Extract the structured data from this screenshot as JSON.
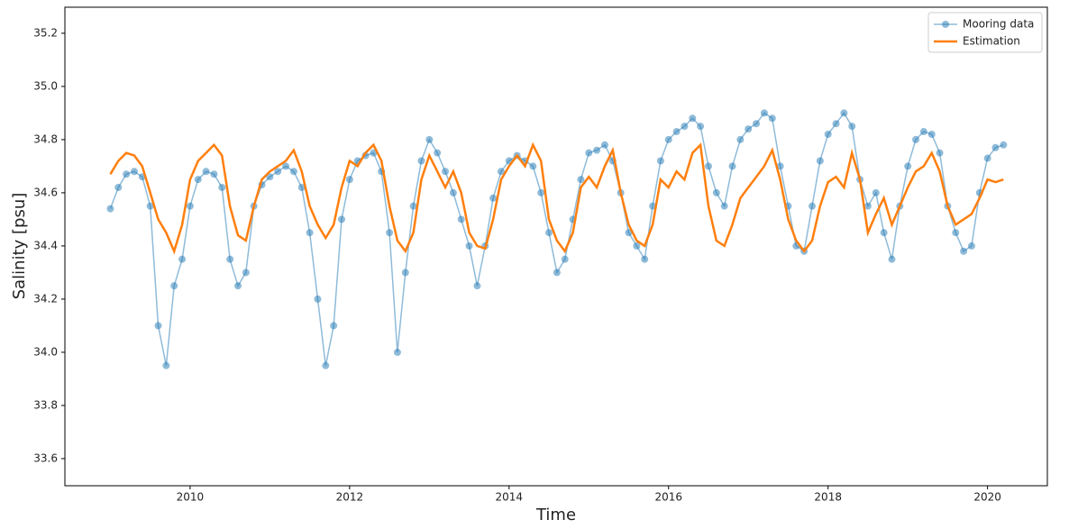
{
  "chart_data": {
    "type": "line",
    "xlabel": "Time",
    "ylabel": "Salinity [psu]",
    "xlim": [
      2008.43,
      2020.75
    ],
    "ylim": [
      33.498,
      35.298
    ],
    "xticks": [
      2010,
      2012,
      2014,
      2016,
      2018,
      2020
    ],
    "yticks": [
      33.6,
      33.8,
      {
        "value": 34.0,
        "label": "34.0"
      },
      34.2,
      34.4,
      34.6,
      34.8,
      {
        "value": 35.0,
        "label": "35.0"
      },
      35.2
    ],
    "grid": false,
    "legend": "upper right",
    "x": [
      2009.0,
      2009.1,
      2009.2,
      2009.3,
      2009.4,
      2009.5,
      2009.6,
      2009.7,
      2009.8,
      2009.9,
      2010.0,
      2010.1,
      2010.2,
      2010.3,
      2010.4,
      2010.5,
      2010.6,
      2010.7,
      2010.8,
      2010.9,
      2011.0,
      2011.1,
      2011.2,
      2011.3,
      2011.4,
      2011.5,
      2011.6,
      2011.7,
      2011.8,
      2011.9,
      2012.0,
      2012.1,
      2012.2,
      2012.3,
      2012.4,
      2012.5,
      2012.6,
      2012.7,
      2012.8,
      2012.9,
      2013.0,
      2013.1,
      2013.2,
      2013.3,
      2013.4,
      2013.5,
      2013.6,
      2013.7,
      2013.8,
      2013.9,
      2014.0,
      2014.1,
      2014.2,
      2014.3,
      2014.4,
      2014.5,
      2014.6,
      2014.7,
      2014.8,
      2014.9,
      2015.0,
      2015.1,
      2015.2,
      2015.3,
      2015.4,
      2015.5,
      2015.6,
      2015.7,
      2015.8,
      2015.9,
      2016.0,
      2016.1,
      2016.2,
      2016.3,
      2016.4,
      2016.5,
      2016.6,
      2016.7,
      2016.8,
      2016.9,
      2017.0,
      2017.1,
      2017.2,
      2017.3,
      2017.4,
      2017.5,
      2017.6,
      2017.7,
      2017.8,
      2017.9,
      2018.0,
      2018.1,
      2018.2,
      2018.3,
      2018.4,
      2018.5,
      2018.6,
      2018.7,
      2018.8,
      2018.9,
      2019.0,
      2019.1,
      2019.2,
      2019.3,
      2019.4,
      2019.5,
      2019.6,
      2019.7,
      2019.8,
      2019.9,
      2020.0,
      2020.1,
      2020.2
    ],
    "series": [
      {
        "name": "Mooring data",
        "color": "#1f77b4",
        "marker": "o",
        "values": [
          34.54,
          34.62,
          34.67,
          34.68,
          34.66,
          34.55,
          34.1,
          33.95,
          34.25,
          34.35,
          34.55,
          34.65,
          34.68,
          34.67,
          34.62,
          34.35,
          34.25,
          34.3,
          34.55,
          34.63,
          34.66,
          34.68,
          34.7,
          34.68,
          34.62,
          34.45,
          34.2,
          33.95,
          34.1,
          34.5,
          34.65,
          34.72,
          34.74,
          34.75,
          34.68,
          34.45,
          34.0,
          34.3,
          34.55,
          34.72,
          34.8,
          34.75,
          34.68,
          34.6,
          34.5,
          34.4,
          34.25,
          34.4,
          34.58,
          34.68,
          34.72,
          34.74,
          34.72,
          34.7,
          34.6,
          34.45,
          34.3,
          34.35,
          34.5,
          34.65,
          34.75,
          34.76,
          34.78,
          34.72,
          34.6,
          34.45,
          34.4,
          34.35,
          34.55,
          34.72,
          34.8,
          34.83,
          34.85,
          34.88,
          34.85,
          34.7,
          34.6,
          34.55,
          34.7,
          34.8,
          34.84,
          34.86,
          34.9,
          34.88,
          34.7,
          34.55,
          34.4,
          34.38,
          34.55,
          34.72,
          34.82,
          34.86,
          34.9,
          34.85,
          34.65,
          34.55,
          34.6,
          34.45,
          34.35,
          34.55,
          34.7,
          34.8,
          34.83,
          34.82,
          34.75,
          34.55,
          34.45,
          34.38,
          34.4,
          34.6,
          34.73,
          34.77,
          34.78
        ]
      },
      {
        "name": "Estimation",
        "color": "#ff7f0e",
        "values": [
          34.67,
          34.72,
          34.75,
          34.74,
          34.7,
          34.6,
          34.5,
          34.45,
          34.38,
          34.48,
          34.65,
          34.72,
          34.75,
          34.78,
          34.74,
          34.55,
          34.44,
          34.42,
          34.55,
          34.65,
          34.68,
          34.7,
          34.72,
          34.76,
          34.68,
          34.55,
          34.48,
          34.43,
          34.48,
          34.62,
          34.72,
          34.7,
          34.75,
          34.78,
          34.72,
          34.55,
          34.42,
          34.38,
          34.45,
          34.65,
          34.74,
          34.68,
          34.62,
          34.68,
          34.6,
          34.45,
          34.4,
          34.39,
          34.5,
          34.65,
          34.7,
          34.74,
          34.7,
          34.78,
          34.72,
          34.5,
          34.42,
          34.38,
          34.45,
          34.62,
          34.66,
          34.62,
          34.7,
          34.76,
          34.6,
          34.48,
          34.42,
          34.4,
          34.48,
          34.65,
          34.62,
          34.68,
          34.65,
          34.75,
          34.78,
          34.55,
          34.42,
          34.4,
          34.48,
          34.58,
          34.62,
          34.66,
          34.7,
          34.76,
          34.65,
          34.5,
          34.42,
          34.38,
          34.42,
          34.55,
          34.64,
          34.66,
          34.62,
          34.75,
          34.65,
          34.45,
          34.52,
          34.58,
          34.48,
          34.55,
          34.62,
          34.68,
          34.7,
          34.75,
          34.68,
          34.55,
          34.48,
          34.5,
          34.52,
          34.58,
          34.65,
          34.64,
          34.65
        ]
      }
    ]
  }
}
